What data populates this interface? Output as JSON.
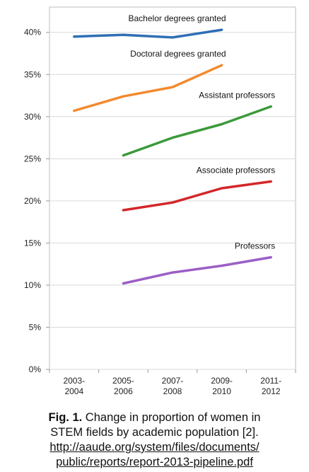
{
  "chart_data": {
    "type": "line",
    "categories": [
      "2003-2004",
      "2005-2006",
      "2007-2008",
      "2009-2010",
      "2011-2012"
    ],
    "category_lines": [
      [
        "2003-",
        "2004"
      ],
      [
        "2005-",
        "2006"
      ],
      [
        "2007-",
        "2008"
      ],
      [
        "2009-",
        "2010"
      ],
      [
        "2011-",
        "2012"
      ]
    ],
    "y_ticks": [
      "0%",
      "5%",
      "10%",
      "15%",
      "20%",
      "25%",
      "30%",
      "35%",
      "40%"
    ],
    "ylim": [
      0,
      43
    ],
    "grid": "horizontal",
    "legend": "inline labels",
    "series": [
      {
        "name": "Bachelor degrees granted",
        "color": "#2f6fb5",
        "values": [
          39.5,
          39.7,
          39.4,
          40.3,
          null
        ]
      },
      {
        "name": "Doctoral degrees granted",
        "color": "#f28a2e",
        "values": [
          30.7,
          32.4,
          33.5,
          36.1,
          null
        ]
      },
      {
        "name": "Assistant professors",
        "color": "#3a9a3a",
        "values": [
          null,
          25.4,
          27.5,
          29.1,
          31.2
        ]
      },
      {
        "name": "Associate professors",
        "color": "#d4262a",
        "values": [
          null,
          18.9,
          19.8,
          21.5,
          22.3
        ]
      },
      {
        "name": "Professors",
        "color": "#9b5fc6",
        "values": [
          null,
          10.2,
          11.5,
          12.3,
          13.3
        ]
      }
    ]
  },
  "caption": {
    "fig_label": "Fig. 1.",
    "text_line1": "Change in proportion of women in",
    "text_line2": "STEM fields by academic population [2].",
    "url_line1": "http://aaude.org/system/files/documents/",
    "url_line2": "public/reports/report-2013-pipeline.pdf"
  }
}
